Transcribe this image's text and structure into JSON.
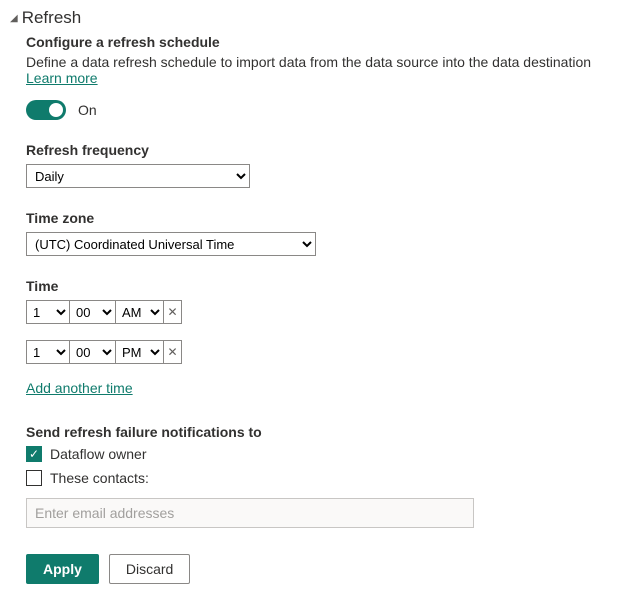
{
  "accent_color": "#0f7b6c",
  "header": {
    "title": "Refresh"
  },
  "config": {
    "subtitle": "Configure a refresh schedule",
    "description": "Define a data refresh schedule to import data from the data source into the data destination",
    "learn_more": "Learn more"
  },
  "toggle": {
    "state": "On"
  },
  "frequency": {
    "label": "Refresh frequency",
    "value": "Daily"
  },
  "timezone": {
    "label": "Time zone",
    "value": "(UTC) Coordinated Universal Time"
  },
  "time": {
    "label": "Time",
    "rows": [
      {
        "hour": "1",
        "minute": "00",
        "ampm": "AM"
      },
      {
        "hour": "1",
        "minute": "00",
        "ampm": "PM"
      }
    ],
    "add_label": "Add another time",
    "remove_glyph": "✕"
  },
  "notifications": {
    "label": "Send refresh failure notifications to",
    "owner_checked": true,
    "owner_label": "Dataflow owner",
    "contacts_checked": false,
    "contacts_label": "These contacts:",
    "email_placeholder": "Enter email addresses"
  },
  "buttons": {
    "apply": "Apply",
    "discard": "Discard"
  }
}
